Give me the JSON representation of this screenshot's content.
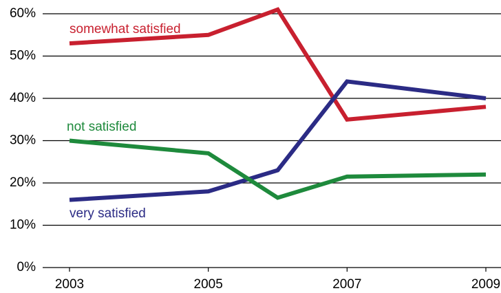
{
  "chart_data": {
    "type": "line",
    "title": "",
    "xlabel": "",
    "ylabel": "",
    "x": [
      2003,
      2005,
      2006,
      2007,
      2009
    ],
    "x_ticks": [
      "2003",
      "2005",
      "2007",
      "2009"
    ],
    "y_ticks": [
      "0%",
      "10%",
      "20%",
      "30%",
      "40%",
      "50%",
      "60%"
    ],
    "ylim": [
      0,
      60
    ],
    "grid": true,
    "legend": "inline labels",
    "series": [
      {
        "name": "somewhat satisfied",
        "color": "#c8202f",
        "values": [
          53,
          55,
          61,
          35,
          38
        ]
      },
      {
        "name": "very satisfied",
        "color": "#2b2b85",
        "values": [
          16,
          18,
          23,
          44,
          40
        ]
      },
      {
        "name": "not satisfied",
        "color": "#1e8a3c",
        "values": [
          30,
          27,
          16.5,
          21.5,
          22
        ]
      }
    ]
  }
}
